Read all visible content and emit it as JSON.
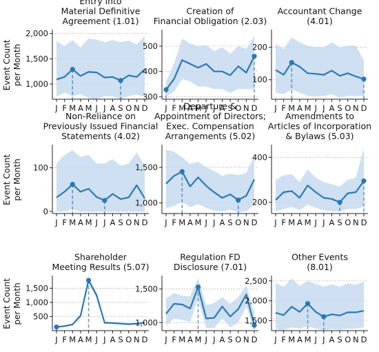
{
  "ylabel": [
    "Event Count",
    "per Month"
  ],
  "months": [
    "J",
    "F",
    "M",
    "A",
    "M",
    "J",
    "J",
    "A",
    "S",
    "O",
    "N",
    "D"
  ],
  "colors": {
    "line": "#2a77b4",
    "band": "#c5daee",
    "grid": "#b8b8b8"
  },
  "chart_data": [
    {
      "type": "line",
      "title": [
        "Entry into",
        "Material Definitive",
        "Agreement (1.01)"
      ],
      "ylim": [
        700,
        2050
      ],
      "yticks": [
        1000,
        1500,
        2000
      ],
      "ytick_labels": [
        "1,000",
        "1,500",
        "2,000"
      ],
      "values": [
        1090,
        1140,
        1290,
        1160,
        1240,
        1230,
        1130,
        1140,
        1070,
        1170,
        1140,
        1290
      ],
      "upper": [
        1850,
        1750,
        1870,
        1720,
        1900,
        1880,
        1830,
        1870,
        1830,
        1860,
        1780,
        1950
      ],
      "lower": [
        750,
        830,
        760,
        800,
        720,
        700,
        760,
        760,
        700,
        760,
        790,
        750
      ],
      "markers": [
        2,
        8
      ]
    },
    {
      "type": "line",
      "title": [
        "Creation of",
        "Financial Obligation (2.03)"
      ],
      "ylim": [
        290,
        560
      ],
      "yticks": [
        300,
        400,
        500
      ],
      "ytick_labels": [
        "300",
        "400",
        "500"
      ],
      "values": [
        328,
        370,
        445,
        430,
        415,
        430,
        400,
        400,
        385,
        420,
        395,
        460
      ],
      "upper": [
        360,
        430,
        530,
        510,
        500,
        505,
        480,
        495,
        470,
        500,
        490,
        540
      ],
      "lower": [
        300,
        320,
        370,
        360,
        340,
        340,
        330,
        330,
        315,
        330,
        330,
        330
      ],
      "markers": [
        0,
        11
      ]
    },
    {
      "type": "line",
      "title": [
        "Accountant Change",
        "(4.01)"
      ],
      "ylim": [
        40,
        250
      ],
      "yticks": [
        100,
        200
      ],
      "ytick_labels": [
        "100",
        "200"
      ],
      "values": [
        130,
        115,
        153,
        140,
        120,
        118,
        115,
        128,
        112,
        120,
        110,
        102
      ],
      "upper": [
        210,
        195,
        230,
        215,
        205,
        200,
        200,
        215,
        200,
        205,
        205,
        160
      ],
      "lower": [
        60,
        55,
        70,
        60,
        50,
        48,
        50,
        55,
        45,
        50,
        50,
        50
      ],
      "markers": [
        2,
        11
      ]
    },
    {
      "type": "line",
      "title": [
        "Non-Reliance on",
        "Previously Issued Financial",
        "Statements (4.02)"
      ],
      "ylim": [
        -5,
        150
      ],
      "yticks": [
        0,
        100
      ],
      "ytick_labels": [
        "0",
        "100"
      ],
      "values": [
        32,
        45,
        62,
        45,
        52,
        33,
        25,
        40,
        28,
        32,
        60,
        30
      ],
      "upper": [
        110,
        130,
        140,
        125,
        130,
        110,
        110,
        120,
        105,
        110,
        135,
        105
      ],
      "lower": [
        0,
        0,
        5,
        0,
        0,
        0,
        0,
        0,
        0,
        0,
        0,
        0
      ],
      "markers": [
        2,
        6
      ]
    },
    {
      "type": "line",
      "title": [
        "Departure &",
        "Appointment of Directors;",
        "Exec. Compensation",
        "Arrangements (5.02)"
      ],
      "ylim": [
        850,
        1800
      ],
      "yticks": [
        1000,
        1500
      ],
      "ytick_labels": [
        "1,000",
        "1,500"
      ],
      "values": [
        1270,
        1380,
        1440,
        1230,
        1360,
        1240,
        1150,
        1070,
        1120,
        1040,
        1100,
        1330
      ],
      "upper": [
        1750,
        1720,
        1640,
        1550,
        1580,
        1500,
        1450,
        1380,
        1410,
        1390,
        1420,
        1660
      ],
      "lower": [
        920,
        960,
        1020,
        940,
        980,
        930,
        890,
        880,
        900,
        870,
        880,
        980
      ],
      "markers": [
        2,
        9
      ]
    },
    {
      "type": "line",
      "title": [
        "Amendments to",
        "Articles of Incorporation",
        "& Bylaws (5.03)"
      ],
      "ylim": [
        150,
        450
      ],
      "yticks": [
        200,
        400
      ],
      "ytick_labels": [
        "200",
        "400"
      ],
      "values": [
        210,
        245,
        250,
        220,
        275,
        245,
        220,
        215,
        200,
        240,
        245,
        295
      ],
      "upper": [
        300,
        320,
        325,
        290,
        345,
        310,
        290,
        280,
        270,
        300,
        310,
        440
      ],
      "lower": [
        160,
        170,
        180,
        165,
        190,
        175,
        165,
        160,
        160,
        170,
        170,
        180
      ],
      "markers": [
        8,
        11
      ]
    },
    {
      "type": "line",
      "title": [
        "Shareholder",
        "Meeting Results (5.07)"
      ],
      "ylim": [
        0,
        1900
      ],
      "yticks": [
        500,
        1000,
        1500
      ],
      "ytick_labels": [
        "500",
        "1,000",
        "1,500"
      ],
      "values": [
        130,
        160,
        220,
        530,
        1780,
        1250,
        280,
        270,
        250,
        230,
        250,
        280
      ],
      "upper": [
        150,
        180,
        250,
        600,
        1850,
        1350,
        320,
        300,
        290,
        270,
        290,
        310
      ],
      "lower": [
        100,
        130,
        190,
        460,
        1700,
        1150,
        240,
        230,
        210,
        200,
        210,
        250
      ],
      "markers": [
        0,
        4
      ]
    },
    {
      "type": "line",
      "title": [
        "Regulation FD",
        "Disclosure (7.01)"
      ],
      "ylim": [
        880,
        1680
      ],
      "yticks": [
        1000,
        1500
      ],
      "ytick_labels": [
        "1,000",
        "1,500"
      ],
      "values": [
        1130,
        1280,
        1270,
        1210,
        1530,
        1060,
        1070,
        1240,
        1090,
        1200,
        1420,
        960
      ],
      "upper": [
        1360,
        1440,
        1400,
        1390,
        1660,
        1260,
        1290,
        1380,
        1280,
        1380,
        1550,
        1150
      ],
      "lower": [
        950,
        1060,
        1040,
        1010,
        1360,
        920,
        920,
        1060,
        930,
        1000,
        1240,
        890
      ],
      "markers": [
        4,
        11
      ]
    },
    {
      "type": "line",
      "title": [
        "Other Events",
        "(8.01)"
      ],
      "ylim": [
        1250,
        2600
      ],
      "yticks": [
        1500,
        2000,
        2500
      ],
      "ytick_labels": [
        "1,500",
        "2,000",
        "2,500"
      ],
      "values": [
        1700,
        1640,
        1850,
        1720,
        1930,
        1720,
        1600,
        1660,
        1630,
        1710,
        1710,
        1750
      ],
      "upper": [
        2450,
        2350,
        2560,
        2380,
        2500,
        2420,
        2350,
        2420,
        2350,
        2440,
        2400,
        2480
      ],
      "lower": [
        1280,
        1260,
        1330,
        1300,
        1360,
        1300,
        1270,
        1290,
        1270,
        1300,
        1300,
        1330
      ],
      "markers": [
        4,
        6
      ]
    }
  ]
}
